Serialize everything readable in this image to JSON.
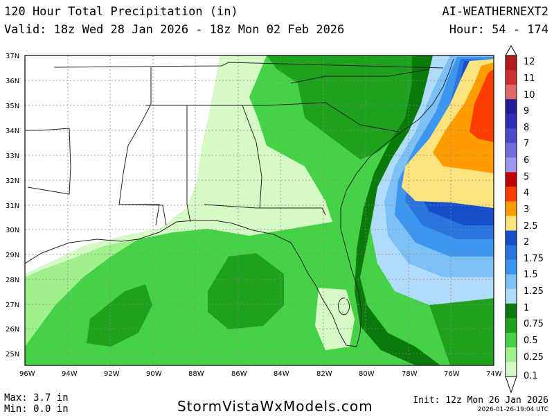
{
  "header": {
    "title": "120 Hour Total Precipitation (in)",
    "valid": "Valid: 18z Wed 28 Jan 2026 - 18z Mon 02 Feb 2026",
    "model": "AI-WEATHERNEXT2",
    "hours": "Hour: 54 - 174"
  },
  "map": {
    "lat_labels": [
      "37N",
      "36N",
      "35N",
      "34N",
      "33N",
      "32N",
      "31N",
      "30N",
      "29N",
      "28N",
      "27N",
      "26N",
      "25N"
    ],
    "lon_labels": [
      "96W",
      "94W",
      "92W",
      "90W",
      "88W",
      "86W",
      "84W",
      "82W",
      "80W",
      "78W",
      "76W",
      "74W"
    ]
  },
  "legend": {
    "levels": [
      "12",
      "11",
      "10",
      "9",
      "8",
      "7",
      "6",
      "5",
      "4",
      "3",
      "2.5",
      "2",
      "1.75",
      "1.5",
      "1.25",
      "1",
      "0.75",
      "0.5",
      "0.25",
      "0.1"
    ],
    "colors": [
      "#b01c1c",
      "#cc2e2e",
      "#e06a6a",
      "#221e96",
      "#2e2eb6",
      "#4c4cc8",
      "#6e6edc",
      "#a098f0",
      "#c00000",
      "#ff3c00",
      "#ff9c00",
      "#fde37e",
      "#1650c8",
      "#2a74e0",
      "#3c96f0",
      "#7cc0f6",
      "#b0dcfa",
      "#0a7a0a",
      "#1ea21e",
      "#46d246",
      "#a0f08c",
      "#d6fac6"
    ]
  },
  "footer": {
    "max": "Max: 3.7 in",
    "min": "Min: 0.0 in",
    "site": "StormVistaWxModels.com",
    "init": "Init: 12z Mon 26 Jan 2026",
    "stamp": "2026-01-26-19:04 UTC"
  }
}
